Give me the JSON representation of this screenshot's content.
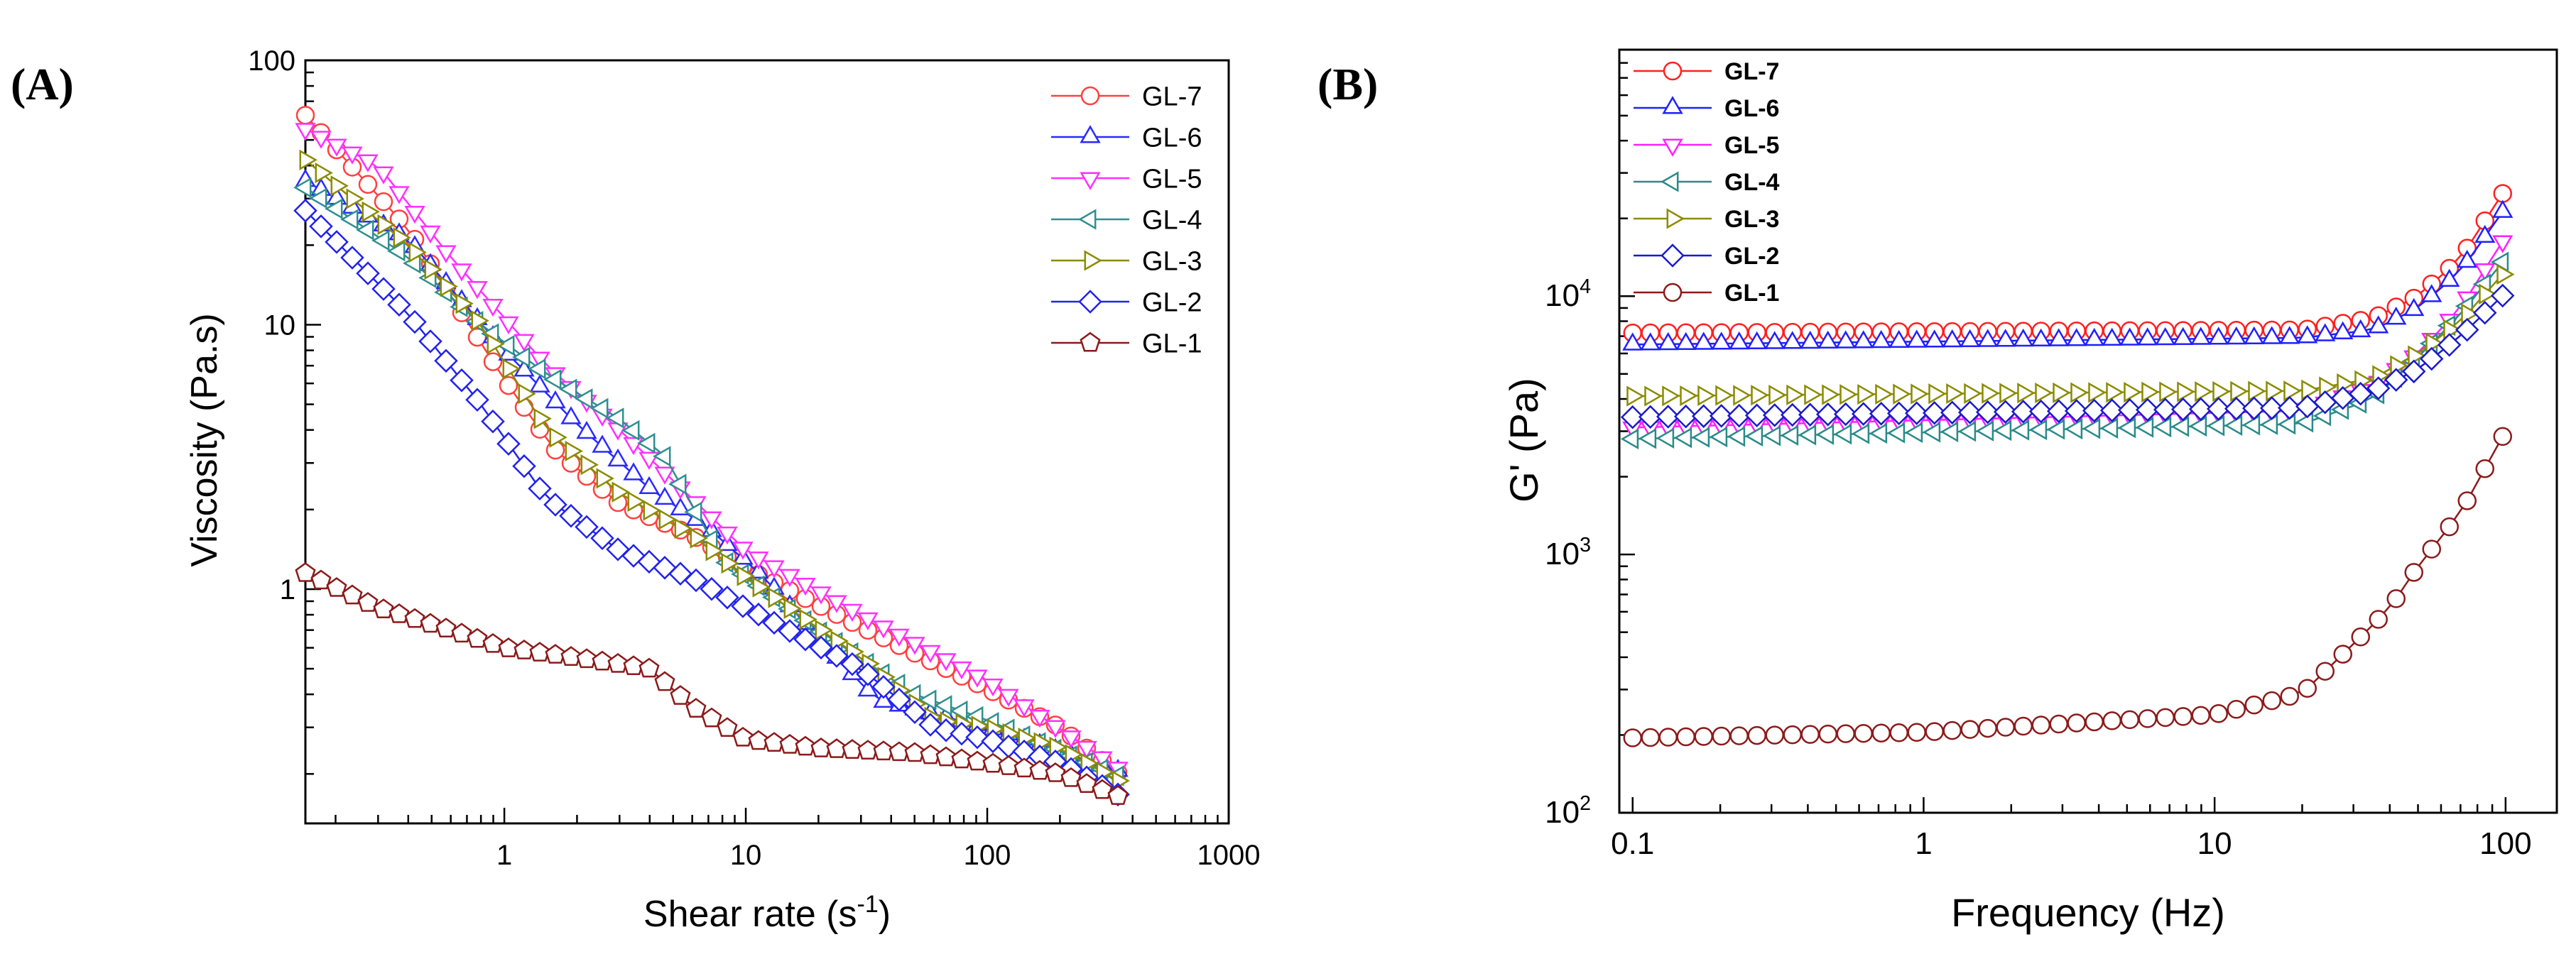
{
  "chart_data": [
    {
      "type": "line",
      "panel_label": "(A)",
      "xlabel": "Shear rate (s",
      "xlabel_sup": "-1",
      "xlabel_tail": ")",
      "ylabel": "Viscosity (Pa.s)",
      "xscale": "log",
      "yscale": "log",
      "xlim": [
        0.15,
        1000
      ],
      "ylim": [
        0.13,
        100
      ],
      "x_ticks": [
        {
          "v": 1,
          "label": "1"
        },
        {
          "v": 10,
          "label": "10"
        },
        {
          "v": 100,
          "label": "100"
        },
        {
          "v": 1000,
          "label": "1000"
        }
      ],
      "y_ticks": [
        {
          "v": 1,
          "label": "1"
        },
        {
          "v": 10,
          "label": "10"
        },
        {
          "v": 100,
          "label": "100"
        }
      ],
      "legend_position": "top-right",
      "series": [
        {
          "name": "GL-7",
          "color": "#ff4040",
          "marker": "circle",
          "points": [
            [
              0.15,
              62
            ],
            [
              0.4,
              23
            ],
            [
              1,
              6.2
            ],
            [
              1.6,
              3.4
            ],
            [
              3,
              2.1
            ],
            [
              6,
              1.6
            ],
            [
              10,
              1.2
            ],
            [
              30,
              0.72
            ],
            [
              100,
              0.42
            ],
            [
              200,
              0.3
            ],
            [
              380,
              0.19
            ]
          ]
        },
        {
          "name": "GL-6",
          "color": "#2a2aff",
          "marker": "triangle-up",
          "points": [
            [
              0.15,
              35
            ],
            [
              0.4,
              21
            ],
            [
              1,
              8
            ],
            [
              2,
              4.2
            ],
            [
              4,
              2.4
            ],
            [
              7,
              1.7
            ],
            [
              12,
              1.1
            ],
            [
              20,
              0.65
            ],
            [
              35,
              0.38
            ],
            [
              100,
              0.3
            ],
            [
              380,
              0.2
            ]
          ]
        },
        {
          "name": "GL-5",
          "color": "#ff30ff",
          "marker": "triangle-down",
          "points": [
            [
              0.15,
              55
            ],
            [
              0.3,
              40
            ],
            [
              0.6,
              18
            ],
            [
              1.5,
              7
            ],
            [
              3,
              4
            ],
            [
              6,
              2.2
            ],
            [
              10,
              1.4
            ],
            [
              30,
              0.8
            ],
            [
              100,
              0.45
            ],
            [
              380,
              0.2
            ]
          ]
        },
        {
          "name": "GL-4",
          "color": "#2f8f8f",
          "marker": "triangle-left",
          "points": [
            [
              0.15,
              33
            ],
            [
              0.4,
              18
            ],
            [
              0.8,
              10
            ],
            [
              1.5,
              6.5
            ],
            [
              3,
              4.4
            ],
            [
              4.6,
              3.2
            ],
            [
              8,
              1.3
            ],
            [
              20,
              0.7
            ],
            [
              50,
              0.4
            ],
            [
              100,
              0.32
            ],
            [
              380,
              0.19
            ]
          ]
        },
        {
          "name": "GL-3",
          "color": "#8b8b00",
          "marker": "triangle-right",
          "points": [
            [
              0.15,
              42
            ],
            [
              0.4,
              20
            ],
            [
              0.8,
              10
            ],
            [
              1.5,
              4
            ],
            [
              3,
              2.3
            ],
            [
              6,
              1.6
            ],
            [
              10,
              1.1
            ],
            [
              30,
              0.55
            ],
            [
              60,
              0.32
            ],
            [
              100,
              0.3
            ],
            [
              200,
              0.25
            ],
            [
              380,
              0.18
            ]
          ]
        },
        {
          "name": "GL-2",
          "color": "#2222ee",
          "marker": "diamond",
          "points": [
            [
              0.15,
              27
            ],
            [
              0.4,
              11
            ],
            [
              0.8,
              5
            ],
            [
              1.5,
              2.2
            ],
            [
              3,
              1.4
            ],
            [
              6,
              1.1
            ],
            [
              10,
              0.85
            ],
            [
              30,
              0.5
            ],
            [
              60,
              0.3
            ],
            [
              100,
              0.27
            ],
            [
              200,
              0.22
            ],
            [
              380,
              0.16
            ]
          ]
        },
        {
          "name": "GL-1",
          "color": "#8b1a1a",
          "marker": "pentagon",
          "points": [
            [
              0.15,
              1.15
            ],
            [
              0.3,
              0.85
            ],
            [
              0.6,
              0.7
            ],
            [
              1,
              0.6
            ],
            [
              2,
              0.55
            ],
            [
              4,
              0.5
            ],
            [
              6,
              0.36
            ],
            [
              10,
              0.27
            ],
            [
              20,
              0.25
            ],
            [
              50,
              0.24
            ],
            [
              100,
              0.22
            ],
            [
              200,
              0.2
            ],
            [
              380,
              0.16
            ]
          ]
        }
      ]
    },
    {
      "type": "line",
      "panel_label": "(B)",
      "xlabel": "Frequency (Hz)",
      "ylabel": "G' (Pa)",
      "xscale": "log",
      "yscale": "log",
      "xlim": [
        0.09,
        150
      ],
      "ylim": [
        100,
        90000
      ],
      "x_ticks": [
        {
          "v": 0.1,
          "label": "0.1"
        },
        {
          "v": 1,
          "label": "1"
        },
        {
          "v": 10,
          "label": "10"
        },
        {
          "v": 100,
          "label": "100"
        }
      ],
      "y_ticks": [
        {
          "v": 100,
          "label": "10",
          "sup": "2"
        },
        {
          "v": 1000,
          "label": "10",
          "sup": "3"
        },
        {
          "v": 10000,
          "label": "10",
          "sup": "4"
        }
      ],
      "legend_position": "top-left",
      "series": [
        {
          "name": "GL-7",
          "color": "#ff2020",
          "marker": "circle",
          "points": [
            [
              0.1,
              7200
            ],
            [
              20,
              7400
            ],
            [
              35,
              8200
            ],
            [
              50,
              10000
            ],
            [
              70,
              14000
            ],
            [
              100,
              26000
            ]
          ]
        },
        {
          "name": "GL-6",
          "color": "#2020ff",
          "marker": "triangle-up",
          "points": [
            [
              0.1,
              6500
            ],
            [
              20,
              6900
            ],
            [
              35,
              7400
            ],
            [
              50,
              9000
            ],
            [
              70,
              12500
            ],
            [
              100,
              22000
            ]
          ]
        },
        {
          "name": "GL-5",
          "color": "#ff20ff",
          "marker": "triangle-down",
          "points": [
            [
              0.1,
              3100
            ],
            [
              20,
              3600
            ],
            [
              35,
              4500
            ],
            [
              50,
              6000
            ],
            [
              70,
              9000
            ],
            [
              100,
              17000
            ]
          ]
        },
        {
          "name": "GL-4",
          "color": "#2a8a8a",
          "marker": "triangle-left",
          "points": [
            [
              0.1,
              2800
            ],
            [
              20,
              3200
            ],
            [
              35,
              4000
            ],
            [
              50,
              5800
            ],
            [
              70,
              8500
            ],
            [
              100,
              14000
            ]
          ]
        },
        {
          "name": "GL-3",
          "color": "#8b8b00",
          "marker": "triangle-right",
          "points": [
            [
              0.1,
              4100
            ],
            [
              20,
              4300
            ],
            [
              35,
              4800
            ],
            [
              50,
              6000
            ],
            [
              70,
              8000
            ],
            [
              100,
              12500
            ]
          ]
        },
        {
          "name": "GL-2",
          "color": "#1a1acc",
          "marker": "diamond",
          "points": [
            [
              0.1,
              3400
            ],
            [
              20,
              3700
            ],
            [
              35,
              4300
            ],
            [
              50,
              5200
            ],
            [
              70,
              7000
            ],
            [
              100,
              10300
            ]
          ]
        },
        {
          "name": "GL-1",
          "color": "#8b1a1a",
          "marker": "circle",
          "points": [
            [
              0.1,
              195
            ],
            [
              1,
              205
            ],
            [
              10,
              240
            ],
            [
              20,
              290
            ],
            [
              30,
              450
            ],
            [
              40,
              620
            ],
            [
              50,
              900
            ],
            [
              70,
              1450
            ],
            [
              100,
              3000
            ]
          ]
        }
      ]
    }
  ]
}
